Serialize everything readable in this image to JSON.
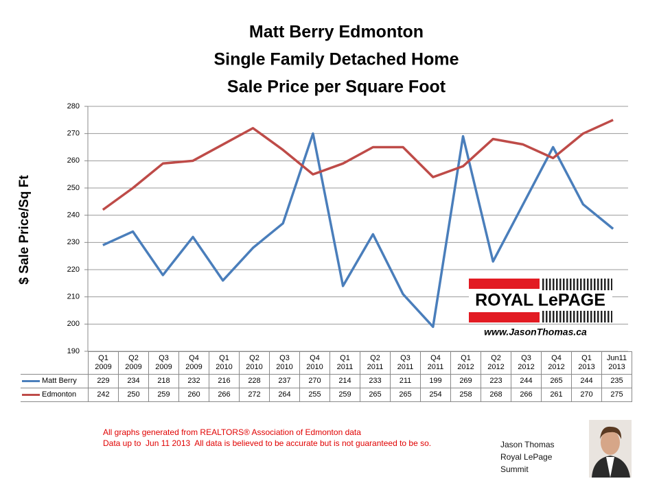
{
  "chart_data": {
    "type": "line",
    "title": [
      "Matt Berry Edmonton",
      "Single Family Detached Home",
      "Sale Price per Square Foot"
    ],
    "y_label": "$ Sale Price/Sq Ft",
    "categories": [
      "Q1 2009",
      "Q2 2009",
      "Q3 2009",
      "Q4 2009",
      "Q1 2010",
      "Q2 2010",
      "Q3 2010",
      "Q4 2010",
      "Q1 2011",
      "Q2 2011",
      "Q3 2011",
      "Q4 2011",
      "Q1 2012",
      "Q2 2012",
      "Q3 2012",
      "Q4 2012",
      "Q1 2013",
      "Jun11 2013"
    ],
    "series": [
      {
        "name": "Matt Berry",
        "color": "#4a7ebb",
        "values": [
          229,
          234,
          218,
          232,
          216,
          228,
          237,
          270,
          214,
          233,
          211,
          199,
          269,
          223,
          244,
          265,
          244,
          235
        ]
      },
      {
        "name": "Edmonton",
        "color": "#be4b48",
        "values": [
          242,
          250,
          259,
          260,
          266,
          272,
          264,
          255,
          259,
          265,
          265,
          254,
          258,
          268,
          266,
          261,
          270,
          275
        ]
      }
    ],
    "ylim": [
      190,
      280
    ],
    "yticks": [
      190,
      200,
      210,
      220,
      230,
      240,
      250,
      260,
      270,
      280
    ],
    "grid": true
  },
  "logo": {
    "name": "ROYAL LePAGE",
    "url": "www.JasonThomas.ca"
  },
  "notes": [
    "All graphs generated from REALTORS® Association of Edmonton data",
    "Data up to  Jun 11 2013  All data is believed to be accurate but is not guaranteed to be so."
  ],
  "agent": [
    "Jason Thomas",
    "Royal LePage",
    "Summit"
  ]
}
